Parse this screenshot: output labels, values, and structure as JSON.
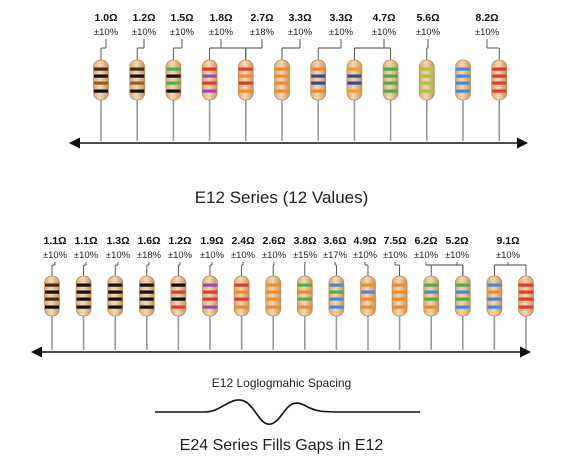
{
  "e12": {
    "title": "E12 Series (12 Values)",
    "items": [
      {
        "value": "1.0Ω",
        "tol": "±10%",
        "bands": [
          "#4a2a12",
          "#111111",
          "#9a5a24",
          "#111111"
        ]
      },
      {
        "value": "1.2Ω",
        "tol": "±10%",
        "bands": [
          "#4a2a12",
          "#111111",
          "#9a5a24",
          "#111111"
        ]
      },
      {
        "value": "1.5Ω",
        "tol": "±10%",
        "bands": [
          "#4cae48",
          "#111111",
          "#4cae48",
          "#111111"
        ]
      },
      {
        "value": "1.8Ω",
        "tol": "±10%",
        "bands": [
          "#e23a2a",
          "#9a4ab0",
          "#e23a2a",
          "#9a4ab0"
        ]
      },
      {
        "value": "2.7Ω",
        "tol": "±18%",
        "bands": [
          "#e23a2a",
          "#f08a2a",
          "#e23a2a",
          "#f08a2a"
        ]
      },
      {
        "value": "3.3Ω",
        "tol": "±10%",
        "bands": [
          "#f08a2a",
          "#f08a2a",
          "#f08a2a",
          "#f08a2a"
        ]
      },
      {
        "value": "3.3Ω",
        "tol": "±10%",
        "bands": [
          "#f08a2a",
          "#3a4a9a",
          "#3a4a9a",
          "#f08a2a"
        ]
      },
      {
        "value": "4.7Ω",
        "tol": "±10%",
        "bands": [
          "#e8a32a",
          "#3a4a9a",
          "#3a4a9a",
          "#e8a32a"
        ]
      },
      {
        "value": "5.6Ω",
        "tol": "±10%",
        "bands": [
          "#4cae48",
          "#4cae48",
          "#4cae48",
          "#4cae48"
        ]
      },
      {
        "value": "",
        "tol": "",
        "bands": [
          "#a8c83a",
          "#a8c83a",
          "#a8c83a",
          "#a8c83a"
        ]
      },
      {
        "value": "",
        "tol": "",
        "bands": [
          "#4a8ad4",
          "#4a8ad4",
          "#4a8ad4",
          "#4a8ad4"
        ]
      },
      {
        "value": "8.2Ω",
        "tol": "±10%",
        "bands": [
          "#e23a2a",
          "#e23a2a",
          "#e23a2a",
          "#e23a2a"
        ]
      }
    ]
  },
  "e24": {
    "title": "E24 Series Fills Gaps in E12",
    "spacing_label": "E12 Loglogmahic Spacing",
    "items": [
      {
        "value": "1.1Ω",
        "tol": "±10%",
        "bands": [
          "#4a2a12",
          "#111111",
          "#4a2a12",
          "#111111"
        ]
      },
      {
        "value": "1.1Ω",
        "tol": "±10%",
        "bands": [
          "#111111",
          "#111111",
          "#111111",
          "#111111"
        ]
      },
      {
        "value": "1.3Ω",
        "tol": "±10%",
        "bands": [
          "#111111",
          "#111111",
          "#111111",
          "#111111"
        ]
      },
      {
        "value": "1.6Ω",
        "tol": "±18%",
        "bands": [
          "#111111",
          "#111111",
          "#111111",
          "#111111"
        ]
      },
      {
        "value": "1.2Ω",
        "tol": "±10%",
        "bands": [
          "#111111",
          "#e23a2a",
          "#111111",
          "#e23a2a"
        ]
      },
      {
        "value": "1.9Ω",
        "tol": "±10%",
        "bands": [
          "#9a4ab0",
          "#e23a2a",
          "#e23a2a",
          "#9a4ab0"
        ]
      },
      {
        "value": "2.4Ω",
        "tol": "±10%",
        "bands": [
          "#e23a2a",
          "#f08a2a",
          "#e23a2a",
          "#f08a2a"
        ]
      },
      {
        "value": "2.6Ω",
        "tol": "±10%",
        "bands": [
          "#f08a2a",
          "#f08a2a",
          "#f08a2a",
          "#f08a2a"
        ]
      },
      {
        "value": "3.8Ω",
        "tol": "±15%",
        "bands": [
          "#4cae48",
          "#f08a2a",
          "#4cae48",
          "#f08a2a"
        ]
      },
      {
        "value": "3.6Ω",
        "tol": "±17%",
        "bands": [
          "#4a8ad4",
          "#4cae48",
          "#4a8ad4",
          "#4a8ad4"
        ]
      },
      {
        "value": "4.9Ω",
        "tol": "±10%",
        "bands": [
          "#f08a2a",
          "#4a8ad4",
          "#f08a2a",
          "#f08a2a"
        ]
      },
      {
        "value": "7.5Ω",
        "tol": "±10%",
        "bands": [
          "#f08a2a",
          "#f08a2a",
          "#f08a2a",
          "#f08a2a"
        ]
      },
      {
        "value": "6.2Ω",
        "tol": "±10%",
        "bands": [
          "#4cae48",
          "#4a8ad4",
          "#4cae48",
          "#f08a2a"
        ]
      },
      {
        "value": "5.2Ω",
        "tol": "±10%",
        "bands": [
          "#4cae48",
          "#4a8ad4",
          "#4cae48",
          "#4a8ad4"
        ]
      },
      {
        "value": "",
        "tol": "",
        "bands": [
          "#4a8ad4",
          "#f08a2a",
          "#4a8ad4",
          "#4a8ad4"
        ]
      },
      {
        "value": "9.1Ω",
        "tol": "±10%",
        "bands": [
          "#e23a2a",
          "#e23a2a",
          "#e23a2a",
          "#e23a2a"
        ]
      }
    ]
  }
}
